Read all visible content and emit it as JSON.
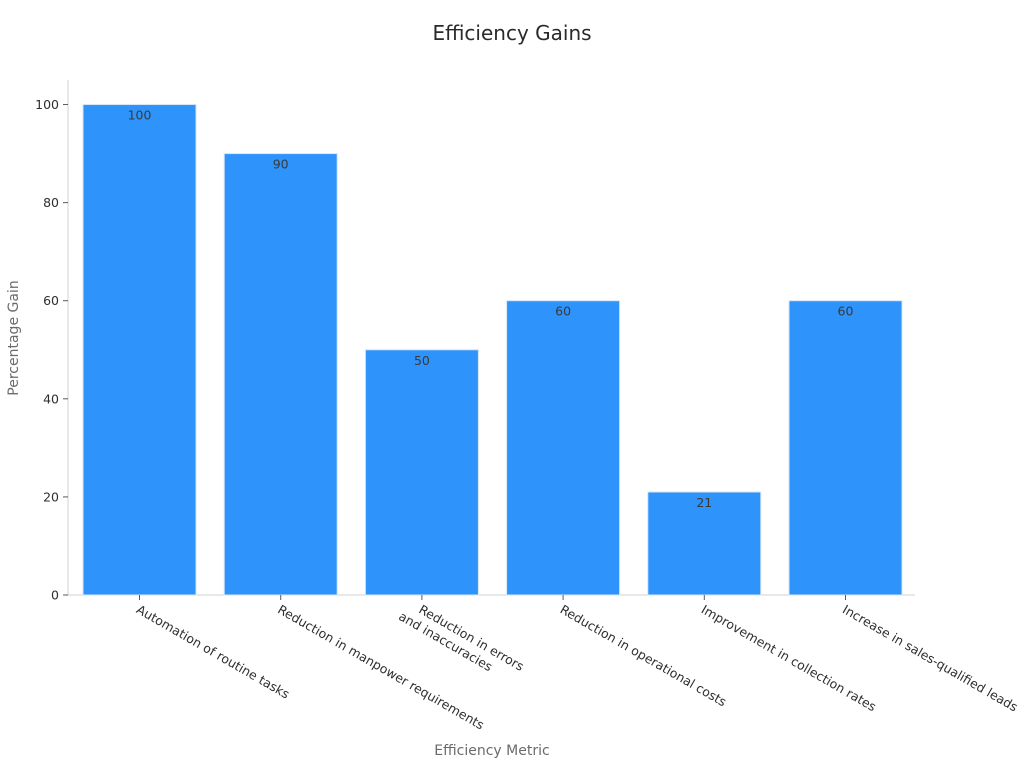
{
  "chart_data": {
    "type": "bar",
    "title": "Efficiency Gains",
    "xlabel": "Efficiency Metric",
    "ylabel": "Percentage Gain",
    "categories": [
      [
        "Automation of routine tasks"
      ],
      [
        "Reduction in manpower requirements"
      ],
      [
        "Reduction in errors",
        "and inaccuracies"
      ],
      [
        "Reduction in operational costs"
      ],
      [
        "Improvement in collection rates"
      ],
      [
        "Increase in sales-qualified leads"
      ]
    ],
    "values": [
      100,
      90,
      50,
      60,
      21,
      60
    ],
    "data_labels": [
      "100",
      "90",
      "50",
      "60",
      "21",
      "60"
    ],
    "ylim": [
      0,
      105
    ],
    "yticks": [
      0,
      20,
      40,
      60,
      80,
      100
    ],
    "grid": false,
    "bar_color": "#2e93fa"
  }
}
